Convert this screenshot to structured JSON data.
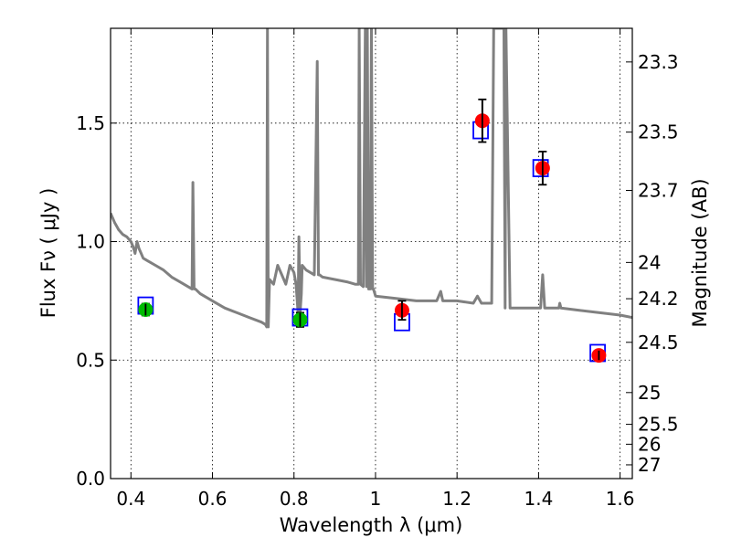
{
  "chart_data": {
    "type": "scatter",
    "title": "",
    "xlabel": "Wavelength  λ (μm)",
    "ylabel": "Flux  Fν  ( μJy )",
    "y2label": "Magnitude (AB)",
    "xlim": [
      0.35,
      1.63
    ],
    "ylim": [
      0.0,
      1.9
    ],
    "xticks": [
      0.4,
      0.6,
      0.8,
      1.0,
      1.2,
      1.4,
      1.6
    ],
    "xtick_labels": [
      "0.4",
      "0.6",
      "0.8",
      "1",
      "1.2",
      "1.4",
      "1.6"
    ],
    "yticks": [
      0.0,
      0.5,
      1.0,
      1.5
    ],
    "ytick_labels": [
      "0.0",
      "0.5",
      "1.0",
      "1.5"
    ],
    "y2ticks": [
      {
        "label": "23.3",
        "flux": 1.758
      },
      {
        "label": "23.5",
        "flux": 1.462
      },
      {
        "label": "23.7",
        "flux": 1.216
      },
      {
        "label": "24",
        "flux": 0.912
      },
      {
        "label": "24.2",
        "flux": 0.759
      },
      {
        "label": "24.5",
        "flux": 0.575
      },
      {
        "label": "25",
        "flux": 0.363
      },
      {
        "label": "25.5",
        "flux": 0.229
      },
      {
        "label": "26",
        "flux": 0.145
      },
      {
        "label": "27",
        "flux": 0.058
      }
    ],
    "grid": true,
    "series": [
      {
        "role": "model-spectrum",
        "style": "line",
        "color": "#808080",
        "x": [
          0.35,
          0.36,
          0.37,
          0.38,
          0.39,
          0.4,
          0.405,
          0.41,
          0.415,
          0.42,
          0.425,
          0.43,
          0.44,
          0.46,
          0.48,
          0.5,
          0.52,
          0.55,
          0.552,
          0.555,
          0.558,
          0.57,
          0.6,
          0.63,
          0.66,
          0.69,
          0.72,
          0.73,
          0.733,
          0.735,
          0.737,
          0.74,
          0.75,
          0.76,
          0.77,
          0.78,
          0.79,
          0.8,
          0.805,
          0.81,
          0.812,
          0.815,
          0.818,
          0.82,
          0.83,
          0.84,
          0.85,
          0.857,
          0.86,
          0.863,
          0.87,
          0.9,
          0.93,
          0.95,
          0.958,
          0.96,
          0.963,
          0.97,
          0.975,
          0.978,
          0.98,
          0.983,
          0.987,
          0.99,
          0.993,
          0.995,
          1.0,
          1.05,
          1.1,
          1.15,
          1.16,
          1.165,
          1.17,
          1.2,
          1.24,
          1.25,
          1.26,
          1.27,
          1.285,
          1.29,
          1.3,
          1.315,
          1.318,
          1.32,
          1.33,
          1.35,
          1.4,
          1.405,
          1.41,
          1.415,
          1.42,
          1.45,
          1.452,
          1.455,
          1.5,
          1.55,
          1.6,
          1.63
        ],
        "y": [
          1.12,
          1.08,
          1.05,
          1.03,
          1.02,
          1.0,
          0.98,
          0.95,
          1.0,
          0.97,
          0.95,
          0.93,
          0.92,
          0.9,
          0.88,
          0.85,
          0.83,
          0.8,
          1.25,
          0.8,
          0.8,
          0.78,
          0.75,
          0.72,
          0.7,
          0.68,
          0.66,
          0.65,
          0.64,
          1.9,
          0.64,
          0.84,
          0.82,
          0.9,
          0.86,
          0.82,
          0.9,
          0.87,
          0.82,
          0.7,
          1.02,
          0.7,
          0.78,
          0.9,
          0.88,
          0.87,
          0.86,
          1.76,
          0.86,
          0.86,
          0.85,
          0.84,
          0.83,
          0.82,
          0.82,
          1.9,
          0.82,
          0.81,
          1.9,
          0.81,
          1.9,
          0.8,
          0.8,
          1.9,
          0.8,
          0.8,
          0.77,
          0.76,
          0.75,
          0.75,
          0.79,
          0.75,
          0.75,
          0.75,
          0.74,
          0.77,
          0.74,
          0.74,
          0.74,
          1.9,
          1.9,
          1.9,
          0.72,
          1.9,
          0.72,
          0.72,
          0.72,
          0.72,
          0.86,
          0.72,
          0.72,
          0.72,
          0.74,
          0.72,
          0.71,
          0.7,
          0.69,
          0.68
        ]
      },
      {
        "role": "model-photometry",
        "style": "open-square",
        "color": "#0000ff",
        "x": [
          0.436,
          0.815,
          1.065,
          1.258,
          1.405,
          1.545
        ],
        "y": [
          0.73,
          0.68,
          0.66,
          1.47,
          1.31,
          0.53
        ]
      },
      {
        "role": "observed-photometry",
        "style": "filled-circle",
        "x": [
          0.436,
          0.815,
          1.065,
          1.262,
          1.41,
          1.548
        ],
        "y": [
          0.713,
          0.67,
          0.71,
          1.51,
          1.31,
          0.52
        ],
        "yerr": [
          0.025,
          0.03,
          0.04,
          0.09,
          0.07,
          0.02
        ],
        "colors": [
          "#00bb00",
          "#00bb00",
          "#ff0000",
          "#ff0000",
          "#ff0000",
          "#ff0000"
        ]
      }
    ]
  }
}
